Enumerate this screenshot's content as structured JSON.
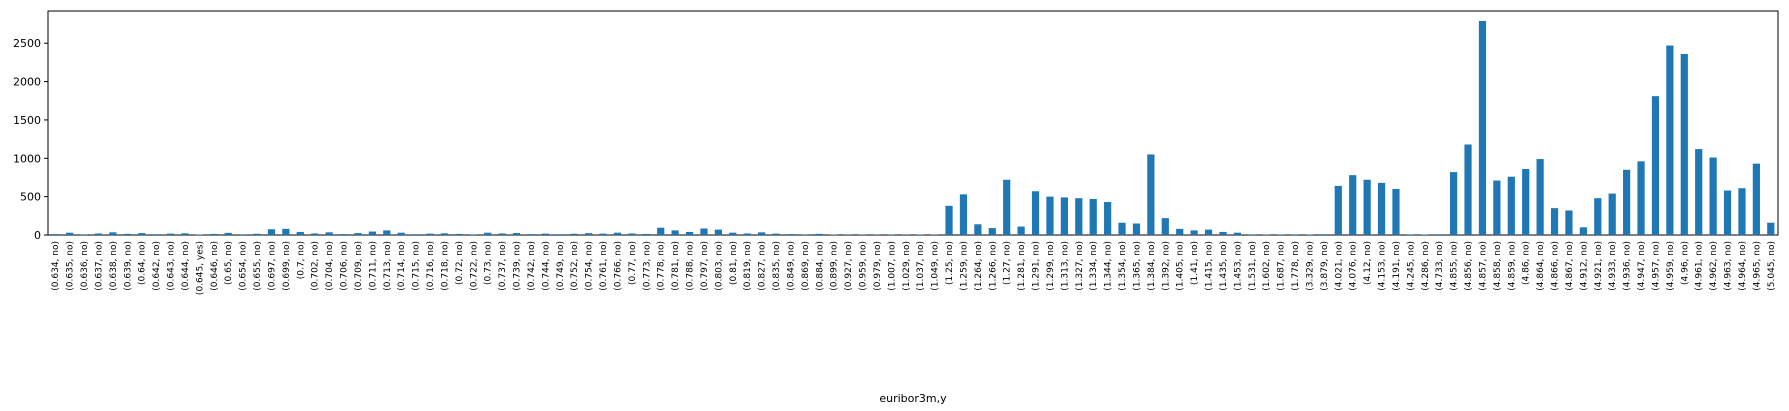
{
  "chart_data": {
    "type": "bar",
    "x_label": "euribor3m,y",
    "color": "#1f77b4",
    "categories": [
      "(0.634, no)",
      "(0.635, no)",
      "(0.636, no)",
      "(0.637, no)",
      "(0.638, no)",
      "(0.639, no)",
      "(0.64, no)",
      "(0.642, no)",
      "(0.643, no)",
      "(0.644, no)",
      "(0.645, yes)",
      "(0.646, no)",
      "(0.65, no)",
      "(0.654, no)",
      "(0.655, no)",
      "(0.697, no)",
      "(0.699, no)",
      "(0.7, no)",
      "(0.702, no)",
      "(0.704, no)",
      "(0.706, no)",
      "(0.709, no)",
      "(0.711, no)",
      "(0.713, no)",
      "(0.714, no)",
      "(0.715, no)",
      "(0.716, no)",
      "(0.718, no)",
      "(0.72, no)",
      "(0.722, no)",
      "(0.73, no)",
      "(0.737, no)",
      "(0.739, no)",
      "(0.742, no)",
      "(0.744, no)",
      "(0.749, no)",
      "(0.752, no)",
      "(0.754, no)",
      "(0.761, no)",
      "(0.766, no)",
      "(0.77, no)",
      "(0.773, no)",
      "(0.778, no)",
      "(0.781, no)",
      "(0.788, no)",
      "(0.797, no)",
      "(0.803, no)",
      "(0.81, no)",
      "(0.819, no)",
      "(0.827, no)",
      "(0.835, no)",
      "(0.849, no)",
      "(0.869, no)",
      "(0.884, no)",
      "(0.899, no)",
      "(0.927, no)",
      "(0.959, no)",
      "(0.979, no)",
      "(1.007, no)",
      "(1.029, no)",
      "(1.037, no)",
      "(1.049, no)",
      "(1.25, no)",
      "(1.259, no)",
      "(1.264, no)",
      "(1.266, no)",
      "(1.27, no)",
      "(1.281, no)",
      "(1.291, no)",
      "(1.299, no)",
      "(1.313, no)",
      "(1.327, no)",
      "(1.334, no)",
      "(1.344, no)",
      "(1.354, no)",
      "(1.365, no)",
      "(1.384, no)",
      "(1.392, no)",
      "(1.405, no)",
      "(1.41, no)",
      "(1.415, no)",
      "(1.435, no)",
      "(1.453, no)",
      "(1.531, no)",
      "(1.602, no)",
      "(1.687, no)",
      "(1.778, no)",
      "(3.329, no)",
      "(3.879, no)",
      "(4.021, no)",
      "(4.076, no)",
      "(4.12, no)",
      "(4.153, no)",
      "(4.191, no)",
      "(4.245, no)",
      "(4.286, no)",
      "(4.733, no)",
      "(4.855, no)",
      "(4.856, no)",
      "(4.857, no)",
      "(4.858, no)",
      "(4.859, no)",
      "(4.86, no)",
      "(4.864, no)",
      "(4.866, no)",
      "(4.867, no)",
      "(4.912, no)",
      "(4.921, no)",
      "(4.933, no)",
      "(4.936, no)",
      "(4.947, no)",
      "(4.957, no)",
      "(4.959, no)",
      "(4.96, no)",
      "(4.961, no)",
      "(4.962, no)",
      "(4.963, no)",
      "(4.964, no)",
      "(4.965, no)",
      "(5.045, no)"
    ],
    "values": [
      12,
      30,
      8,
      20,
      35,
      15,
      25,
      10,
      18,
      22,
      6,
      14,
      28,
      9,
      16,
      75,
      80,
      40,
      20,
      35,
      12,
      25,
      45,
      60,
      30,
      10,
      18,
      22,
      14,
      8,
      30,
      20,
      26,
      12,
      18,
      10,
      16,
      24,
      18,
      30,
      20,
      14,
      95,
      60,
      40,
      85,
      70,
      30,
      20,
      35,
      18,
      12,
      8,
      15,
      6,
      4,
      5,
      4,
      5,
      4,
      6,
      5,
      380,
      530,
      140,
      90,
      720,
      110,
      570,
      500,
      490,
      480,
      470,
      430,
      160,
      150,
      1050,
      220,
      80,
      60,
      70,
      40,
      30,
      8,
      6,
      5,
      8,
      6,
      10,
      640,
      780,
      720,
      680,
      600,
      8,
      6,
      10,
      820,
      1180,
      2790,
      710,
      760,
      860,
      990,
      350,
      320,
      100,
      480,
      540,
      850,
      960,
      1810,
      2470,
      2360,
      1120,
      1010,
      580,
      610,
      930,
      160
    ],
    "ylim": [
      0,
      2920
    ],
    "yticks": [
      0,
      500,
      1000,
      1500,
      2000,
      2500
    ]
  }
}
